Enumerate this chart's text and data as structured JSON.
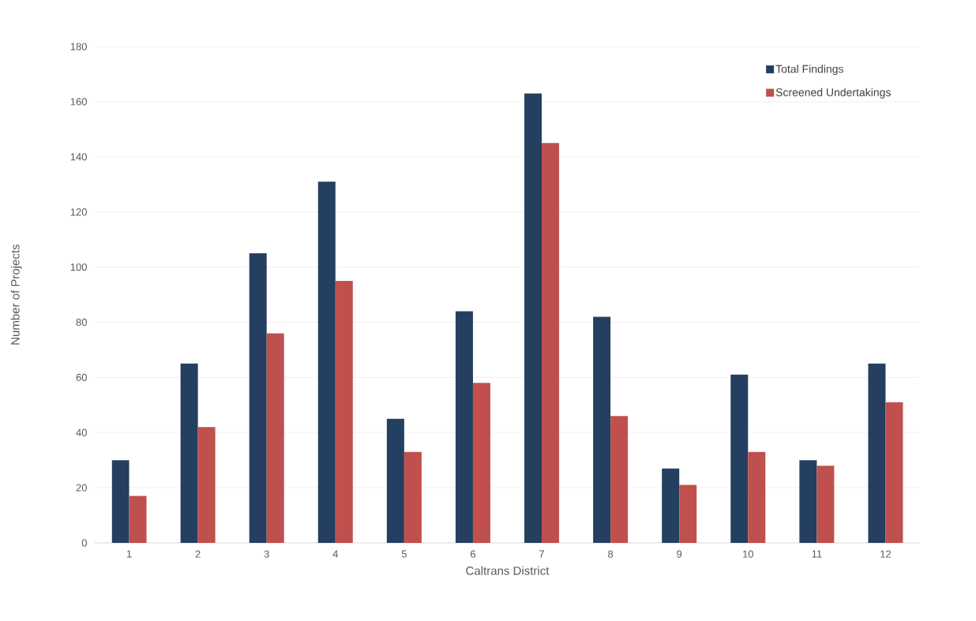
{
  "chart_data": {
    "type": "bar",
    "xlabel": "Caltrans District",
    "ylabel": "Number of Projects",
    "categories": [
      "1",
      "2",
      "3",
      "4",
      "5",
      "6",
      "7",
      "8",
      "9",
      "10",
      "11",
      "12"
    ],
    "series": [
      {
        "name": "Total Findings",
        "color": "#243f60",
        "values": [
          30,
          65,
          105,
          131,
          45,
          84,
          163,
          82,
          27,
          61,
          30,
          65
        ]
      },
      {
        "name": "Screened Undertakings",
        "color": "#c0504d",
        "values": [
          17,
          42,
          76,
          95,
          33,
          58,
          145,
          46,
          21,
          33,
          28,
          51
        ]
      }
    ],
    "ylim": [
      0,
      180
    ],
    "yticks": [
      0,
      20,
      40,
      60,
      80,
      100,
      120,
      140,
      160,
      180
    ],
    "grid": "y",
    "legend": "top right"
  }
}
